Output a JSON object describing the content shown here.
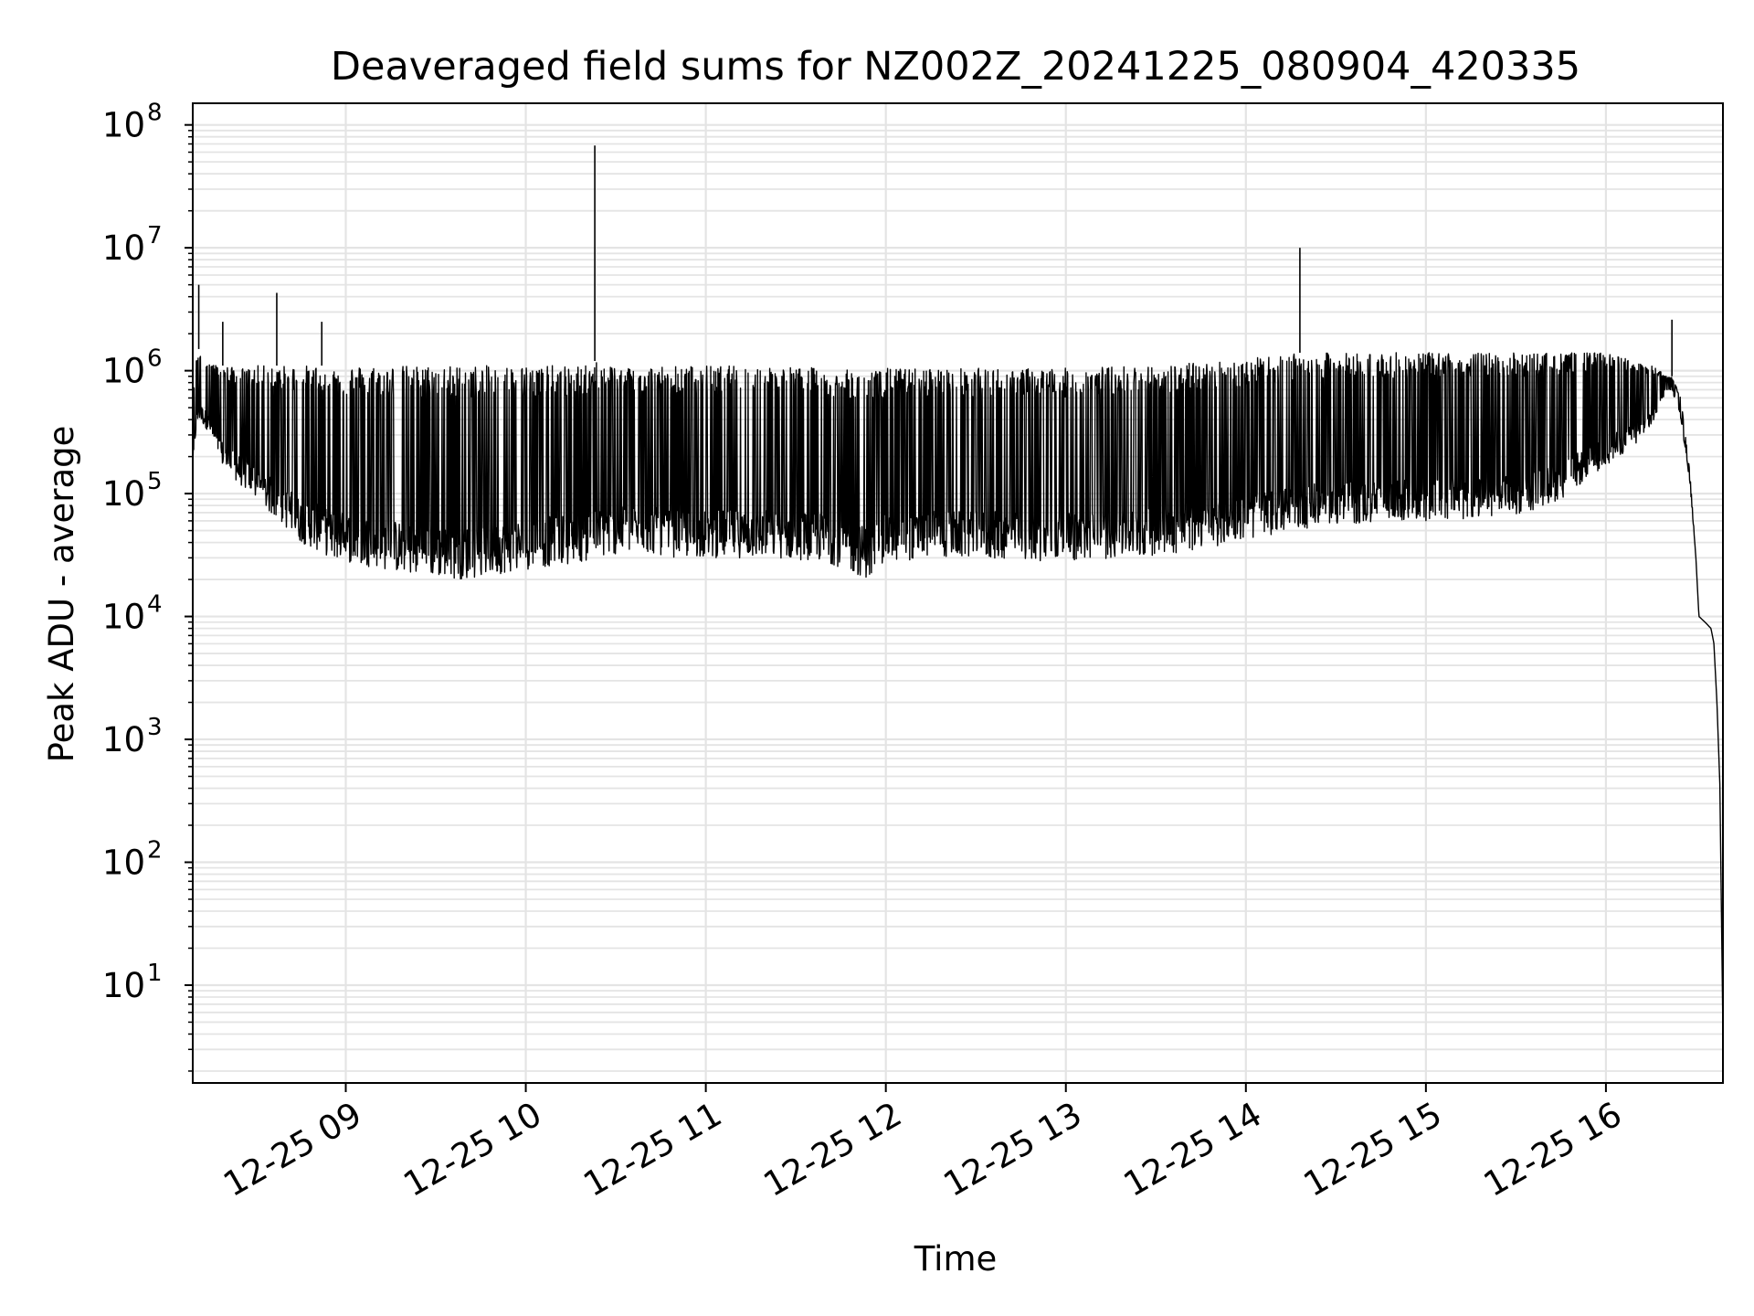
{
  "chart_data": {
    "type": "line",
    "title": "Deaveraged field sums for NZ002Z_20241225_080904_420335",
    "xlabel": "Time",
    "ylabel": "Peak ADU - average",
    "yscale": "log",
    "ylim": [
      1.6,
      150000000
    ],
    "xlim": [
      "2024-12-25 08:09",
      "2024-12-25 16:39"
    ],
    "grid": true,
    "x_ticks": [
      "12-25 09",
      "12-25 10",
      "12-25 11",
      "12-25 12",
      "12-25 13",
      "12-25 14",
      "12-25 15",
      "12-25 16"
    ],
    "y_ticks": [
      {
        "base": "10",
        "exp": "1",
        "value": 10
      },
      {
        "base": "10",
        "exp": "2",
        "value": 100
      },
      {
        "base": "10",
        "exp": "3",
        "value": 1000
      },
      {
        "base": "10",
        "exp": "4",
        "value": 10000
      },
      {
        "base": "10",
        "exp": "5",
        "value": 100000
      },
      {
        "base": "10",
        "exp": "6",
        "value": 1000000
      },
      {
        "base": "10",
        "exp": "7",
        "value": 10000000
      },
      {
        "base": "10",
        "exp": "8",
        "value": 100000000
      }
    ],
    "line_color": "#000000",
    "series": [
      {
        "x": [
          "08:09",
          "08:10",
          "08:11",
          "08:13",
          "08:15",
          "08:17",
          "08:20",
          "08:23",
          "08:26",
          "08:28",
          "08:30",
          "08:33",
          "08:36",
          "08:39",
          "08:42",
          "08:45",
          "08:50",
          "08:55",
          "09:00",
          "09:05",
          "09:10",
          "09:20",
          "09:30",
          "09:40",
          "09:50",
          "10:00",
          "10:10",
          "10:20",
          "10:23",
          "10:24",
          "10:25",
          "10:30",
          "10:40",
          "10:50",
          "11:00",
          "11:20",
          "11:40",
          "11:50",
          "11:55",
          "12:00",
          "12:20",
          "12:40",
          "13:00",
          "13:20",
          "13:40",
          "14:00",
          "14:15",
          "14:18",
          "14:19",
          "14:20",
          "14:30",
          "14:45",
          "15:00",
          "15:15",
          "15:30",
          "15:45",
          "16:00",
          "16:10",
          "16:15",
          "16:18",
          "16:20",
          "16:22",
          "16:25",
          "16:28",
          "16:30",
          "16:31",
          "16:33",
          "16:35",
          "16:36",
          "16:37",
          "16:38",
          "16:39"
        ],
        "low": [
          150000,
          300000,
          400000,
          350000,
          300000,
          200000,
          150000,
          130000,
          110000,
          100000,
          90000,
          75000,
          65000,
          55000,
          48000,
          40000,
          35000,
          30000,
          28000,
          26000,
          25000,
          22000,
          21000,
          20000,
          22000,
          24000,
          26000,
          28000,
          30000,
          30000,
          30000,
          32000,
          33000,
          30000,
          30000,
          30000,
          28000,
          22000,
          20000,
          28000,
          30000,
          29000,
          28000,
          30000,
          33000,
          42000,
          50000,
          52000,
          52000,
          52000,
          55000,
          58000,
          60000,
          62000,
          65000,
          90000,
          170000,
          250000,
          350000,
          500000,
          700000,
          700000,
          400000,
          120000,
          30000,
          10000,
          9000,
          8000,
          6000,
          2000,
          400,
          4
        ],
        "high": [
          500000,
          1200000,
          1500000,
          1300000,
          1200000,
          1100000,
          1100000,
          1050000,
          1050000,
          1050000,
          1100000,
          1100000,
          1100000,
          1100000,
          1100000,
          1100000,
          1100000,
          1100000,
          1100000,
          1100000,
          1100000,
          1100000,
          1100000,
          1100000,
          1100000,
          1100000,
          1100000,
          1100000,
          1200000,
          1200000,
          1200000,
          1100000,
          1100000,
          1100000,
          1100000,
          1100000,
          1050000,
          1000000,
          1000000,
          1050000,
          1050000,
          1050000,
          1050000,
          1100000,
          1150000,
          1250000,
          1350000,
          1400000,
          1400000,
          1400000,
          1400000,
          1400000,
          1400000,
          1400000,
          1400000,
          1400000,
          1400000,
          1200000,
          1100000,
          1000000,
          900000,
          900000,
          600000,
          150000,
          30000,
          10000,
          9000,
          8000,
          6000,
          2000,
          400,
          4
        ]
      }
    ],
    "spikes": [
      {
        "x": "08:11",
        "y": 5000000
      },
      {
        "x": "08:19",
        "y": 2500000
      },
      {
        "x": "08:37",
        "y": 4300000
      },
      {
        "x": "08:52",
        "y": 2500000
      },
      {
        "x": "10:23",
        "y": 68000000
      },
      {
        "x": "14:18",
        "y": 10000000
      },
      {
        "x": "16:22",
        "y": 2600000
      }
    ]
  }
}
